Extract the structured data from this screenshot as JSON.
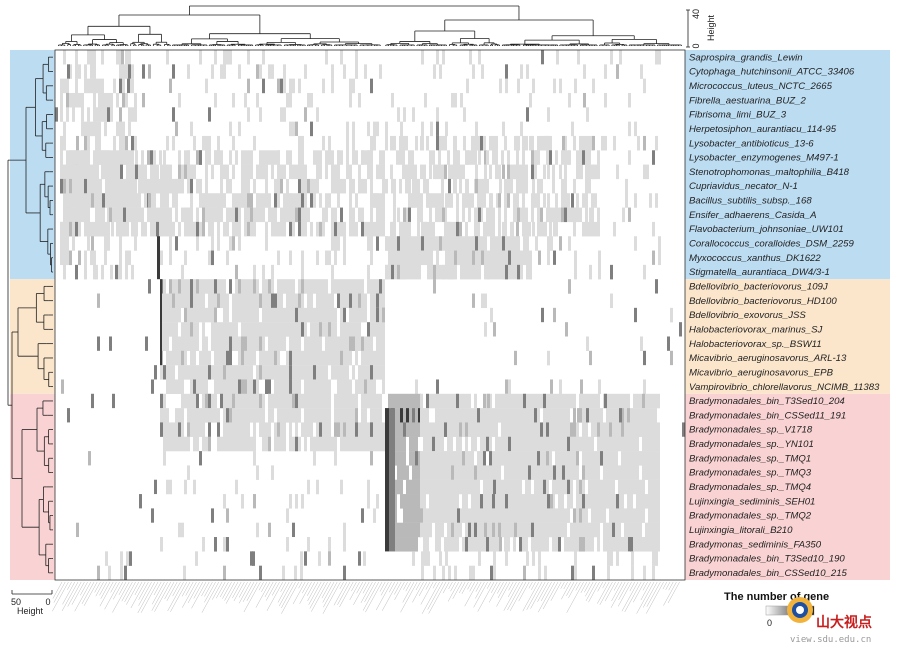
{
  "chart_data": {
    "type": "heatmap",
    "rows": [
      {
        "name": "Saprospira_grandis_Lewin",
        "group": "blue"
      },
      {
        "name": "Cytophaga_hutchinsonii_ATCC_33406",
        "group": "blue"
      },
      {
        "name": "Micrococcus_luteus_NCTC_2665",
        "group": "blue"
      },
      {
        "name": "Fibrella_aestuarina_BUZ_2",
        "group": "blue"
      },
      {
        "name": "Fibrisoma_limi_BUZ_3",
        "group": "blue"
      },
      {
        "name": "Herpetosiphon_aurantiacu_114-95",
        "group": "blue"
      },
      {
        "name": "Lysobacter_antibioticus_13-6",
        "group": "blue"
      },
      {
        "name": "Lysobacter_enzymogenes_M497-1",
        "group": "blue"
      },
      {
        "name": "Stenotrophomonas_maltophilia_B418",
        "group": "blue"
      },
      {
        "name": "Cupriavidus_necator_N-1",
        "group": "blue"
      },
      {
        "name": "Bacillus_subtilis_subsp._168",
        "group": "blue"
      },
      {
        "name": "Ensifer_adhaerens_Casida_A",
        "group": "blue"
      },
      {
        "name": "Flavobacterium_johnsoniae_UW101",
        "group": "blue"
      },
      {
        "name": "Corallococcus_coralloides_DSM_2259",
        "group": "blue"
      },
      {
        "name": "Myxococcus_xanthus_DK1622",
        "group": "blue"
      },
      {
        "name": "Stigmatella_aurantiaca_DW4/3-1",
        "group": "blue"
      },
      {
        "name": "Bdellovibrio_bacteriovorus_109J",
        "group": "orange"
      },
      {
        "name": "Bdellovibrio_bacteriovorus_HD100",
        "group": "orange"
      },
      {
        "name": "Bdellovibrio_exovorus_JSS",
        "group": "orange"
      },
      {
        "name": "Halobacteriovorax_marinus_SJ",
        "group": "orange"
      },
      {
        "name": "Halobacteriovorax_sp._BSW11",
        "group": "orange"
      },
      {
        "name": "Micavibrio_aeruginosavorus_ARL-13",
        "group": "orange"
      },
      {
        "name": "Micavibrio_aeruginosavorus_EPB",
        "group": "orange"
      },
      {
        "name": "Vampirovibrio_chlorellavorus_NCIMB_11383",
        "group": "orange"
      },
      {
        "name": "Bradymonadales_bin_T3Sed10_204",
        "group": "red"
      },
      {
        "name": "Bradymonadales_bin_CSSed11_191",
        "group": "red"
      },
      {
        "name": "Bradymonadales_sp._V1718",
        "group": "red"
      },
      {
        "name": "Bradymonadales_sp._YN101",
        "group": "red"
      },
      {
        "name": "Bradymonadales_sp._TMQ1",
        "group": "red"
      },
      {
        "name": "Bradymonadales_sp._TMQ3",
        "group": "red"
      },
      {
        "name": "Bradymonadales_sp._TMQ4",
        "group": "red"
      },
      {
        "name": "Lujinxingia_sediminis_SEH01",
        "group": "red"
      },
      {
        "name": "Bradymonadales_sp._TMQ2",
        "group": "red"
      },
      {
        "name": "Lujinxingia_litorali_B210",
        "group": "red"
      },
      {
        "name": "Bradymonas_sediminis_FA350",
        "group": "red"
      },
      {
        "name": "Bradymonadales_bin_T3Sed10_190",
        "group": "red"
      },
      {
        "name": "Bradymonadales_bin_CSSed10_215",
        "group": "red"
      }
    ],
    "group_colors": {
      "blue": "#bcdcf2",
      "orange": "#fbe6cc",
      "red": "#f9d3d3"
    },
    "column_dendrogram_axis": {
      "label": "Height",
      "ticks": [
        0,
        40
      ]
    },
    "row_dendrogram_axis": {
      "label": "Height",
      "ticks": [
        50,
        0
      ]
    },
    "legend": {
      "title": "The number of gene",
      "min_label": "0"
    },
    "cell_colors": [
      "#ffffff",
      "#dcdcdc",
      "#b9b9b9",
      "#7f7f7f",
      "#3a3a3a"
    ]
  },
  "watermark": {
    "text": "山大视点",
    "url": "view.sdu.edu.cn"
  }
}
